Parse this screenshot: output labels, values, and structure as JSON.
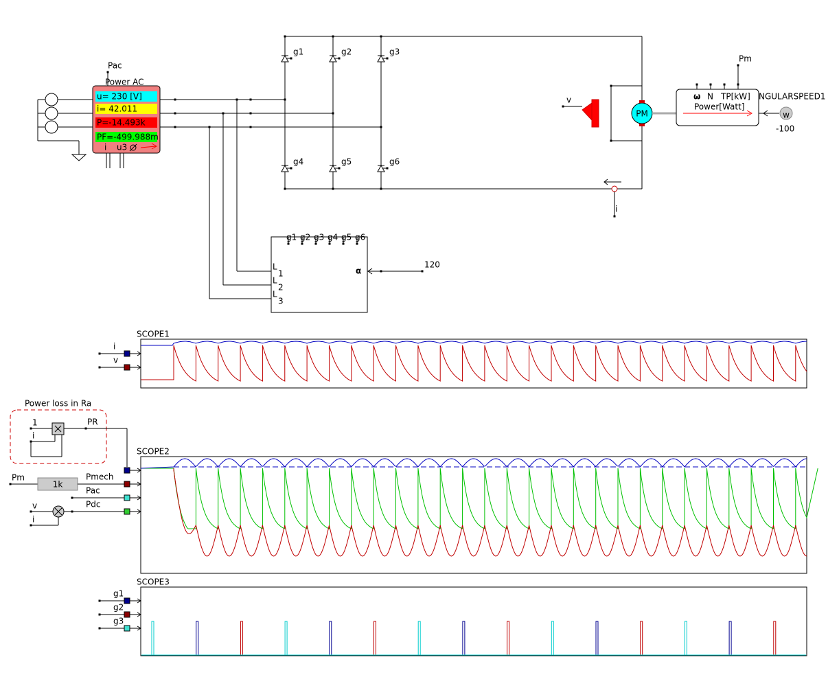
{
  "meter": {
    "pin": "Pac",
    "title": "Power AC",
    "readings": [
      "u= 230 [V]",
      "i= 42.011",
      "P=-14.493k",
      "PF=-499.988m"
    ],
    "footer_current": "i",
    "footer_voltage": "u3"
  },
  "bridge": {
    "gates": [
      "g1",
      "g2",
      "g3",
      "g4",
      "g5",
      "g6"
    ]
  },
  "controller": {
    "gates": [
      "g1",
      "g2",
      "g3",
      "g4",
      "g5",
      "g6"
    ],
    "phase_letter": [
      "L",
      "L",
      "L"
    ],
    "phase_numbers": [
      "1",
      "2",
      "3"
    ],
    "alpha": "α",
    "alpha_value": "120"
  },
  "motor": {
    "voltage_probe": "v",
    "label": "PM",
    "speed_symbol": "ω",
    "torque_pins": [
      "N",
      "TP[kW]"
    ],
    "power_label": "Power[Watt]",
    "pm_pin": "Pm",
    "speed_source": "NGULARSPEED1",
    "speed_source_symbol": "w",
    "speed_value": "-100"
  },
  "current_sensor": {
    "label": "i"
  },
  "scopes": [
    {
      "title": "SCOPE1",
      "inputs": [
        "i",
        "v"
      ]
    },
    {
      "title": "SCOPE2"
    },
    {
      "title": "SCOPE3",
      "inputs": [
        "g1",
        "g2",
        "g3"
      ]
    }
  ],
  "loss_block": {
    "title": "Power loss in Ra",
    "inputs": [
      "1",
      "i"
    ],
    "output": "PR"
  },
  "mech_block": {
    "input": "Pm",
    "gain": "1k",
    "output": "Pmech"
  },
  "pac_wire": "Pac",
  "dc_power": {
    "inputs": [
      "v",
      "i"
    ],
    "output": "Pdc"
  }
}
